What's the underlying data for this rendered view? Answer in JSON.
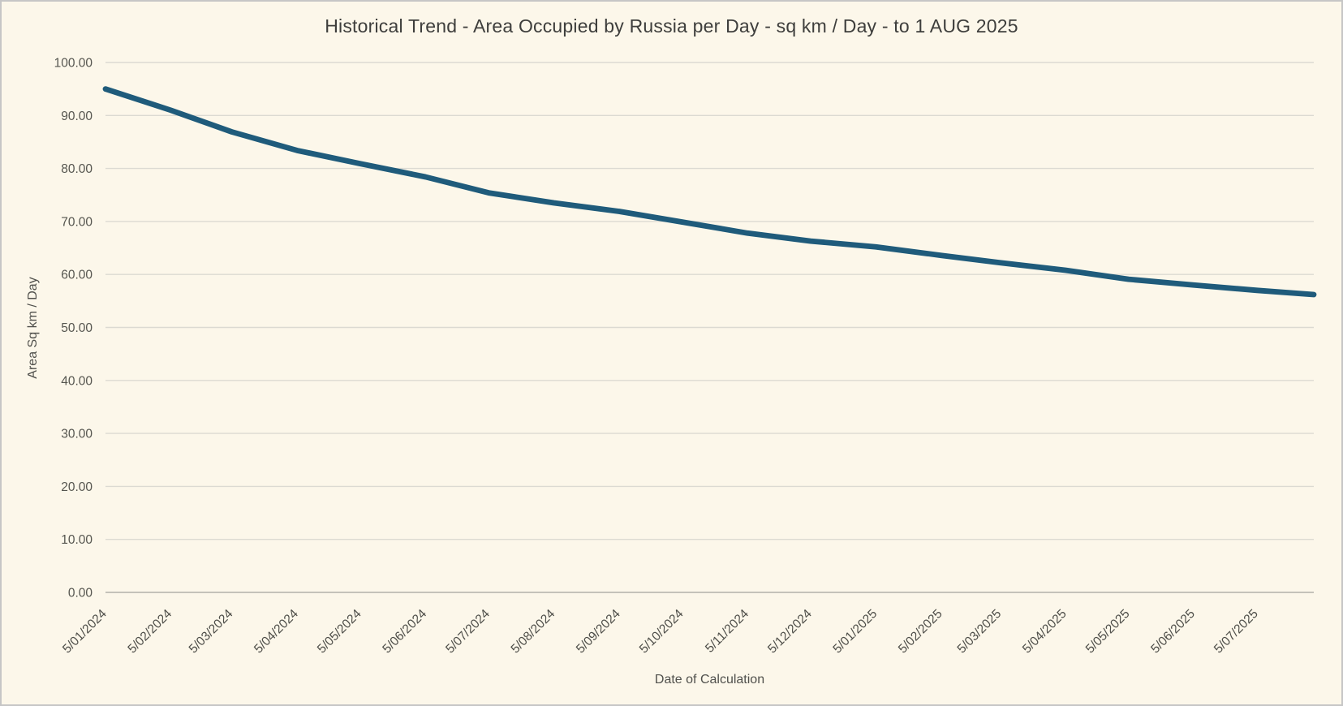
{
  "window": {
    "background_color": "#FCF7EA",
    "border_color": "#C6C6C6"
  },
  "chart_data": {
    "type": "line",
    "title": "Historical Trend - Area Occupied by Russia per Day - sq km / Day - to 1 AUG 2025",
    "xlabel": "Date of Calculation",
    "ylabel": "Area Sq km / Day",
    "ylim": [
      0,
      100
    ],
    "ytick_step": 10,
    "ytick_decimals": 2,
    "ytick_labels": [
      "0.00",
      "10.00",
      "20.00",
      "30.00",
      "40.00",
      "50.00",
      "60.00",
      "70.00",
      "80.00",
      "90.00",
      "100.00"
    ],
    "grid": "horizontal-only",
    "legend": "none",
    "x_tick_labels": [
      "5/01/2024",
      "5/02/2024",
      "5/03/2024",
      "5/04/2024",
      "5/05/2024",
      "5/06/2024",
      "5/07/2024",
      "5/08/2024",
      "5/09/2024",
      "5/10/2024",
      "5/11/2024",
      "5/12/2024",
      "5/01/2025",
      "5/02/2025",
      "5/03/2025",
      "5/04/2025",
      "5/05/2025",
      "5/06/2025",
      "5/07/2025"
    ],
    "x_tick_day_offsets": [
      0,
      31,
      60,
      91,
      121,
      152,
      182,
      213,
      244,
      274,
      305,
      335,
      366,
      397,
      425,
      456,
      486,
      517,
      547
    ],
    "x_axis_span_days": 574,
    "x_end_date_from_title": "1 AUG 2025",
    "series": [
      {
        "point_day_offsets": [
          0,
          31,
          60,
          91,
          121,
          152,
          182,
          213,
          244,
          274,
          305,
          335,
          366,
          397,
          425,
          456,
          486,
          517,
          547,
          574
        ],
        "values": [
          95.0,
          91.0,
          86.9,
          83.4,
          80.9,
          78.4,
          75.4,
          73.5,
          71.9,
          69.9,
          67.8,
          66.3,
          65.2,
          63.6,
          62.2,
          60.8,
          59.1,
          58.0,
          57.0,
          56.2
        ],
        "color": "#1F5B7B",
        "stroke_width": 6.8
      }
    ],
    "colors": {
      "gridline": "#DCDAD2",
      "axis_line": "#C4C2BA",
      "ytick_text": "#55554F",
      "xtick_text": "#4D4D48",
      "title_text": "#3E3E3C",
      "axis_title_text": "#50504C"
    }
  }
}
